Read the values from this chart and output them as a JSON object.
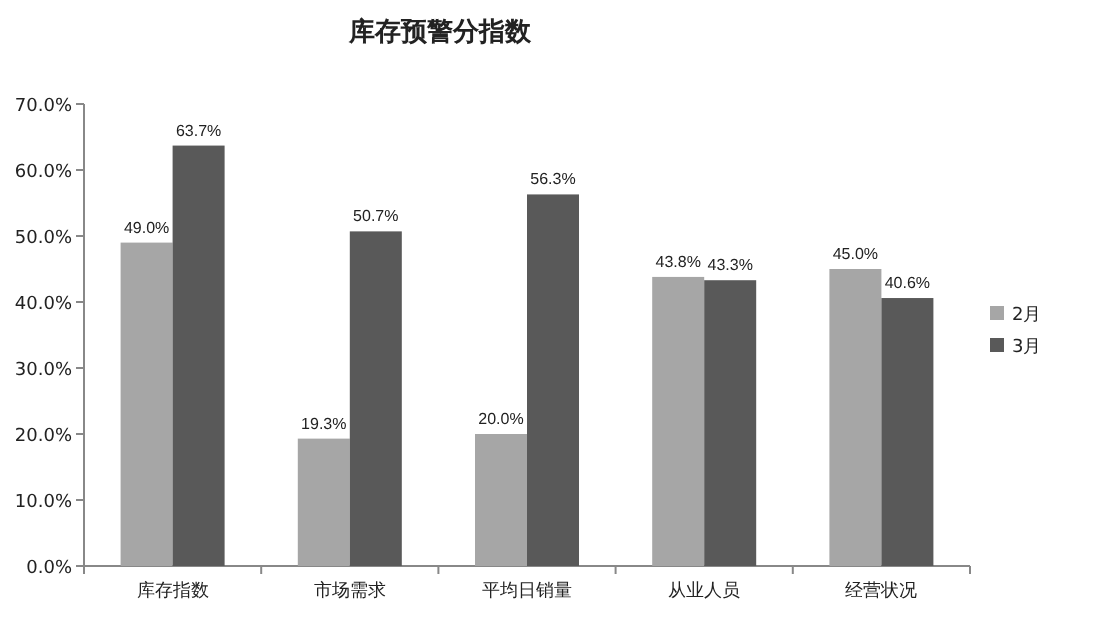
{
  "chart_data": {
    "type": "bar",
    "title": "库存预警分指数",
    "categories": [
      "库存指数",
      "市场需求",
      "平均日销量",
      "从业人员",
      "经营状况"
    ],
    "series": [
      {
        "name": "2月",
        "color": "#a6a6a6",
        "values": [
          49.0,
          19.3,
          20.0,
          43.8,
          45.0
        ],
        "value_labels": [
          "49.0%",
          "19.3%",
          "20.0%",
          "43.8%",
          "45.0%"
        ]
      },
      {
        "name": "3月",
        "color": "#595959",
        "values": [
          63.7,
          50.7,
          56.3,
          43.3,
          40.6
        ],
        "value_labels": [
          "63.7%",
          "50.7%",
          "56.3%",
          "43.3%",
          "40.6%"
        ]
      }
    ],
    "ylim": [
      0,
      70
    ],
    "yticks": [
      {
        "value": 0,
        "label": "0.0%"
      },
      {
        "value": 10,
        "label": "10.0%"
      },
      {
        "value": 20,
        "label": "20.0%"
      },
      {
        "value": 30,
        "label": "30.0%"
      },
      {
        "value": 40,
        "label": "40.0%"
      },
      {
        "value": 50,
        "label": "50.0%"
      },
      {
        "value": 60,
        "label": "60.0%"
      },
      {
        "value": 70,
        "label": "70.0%"
      }
    ],
    "grid": false,
    "legend": "right"
  }
}
